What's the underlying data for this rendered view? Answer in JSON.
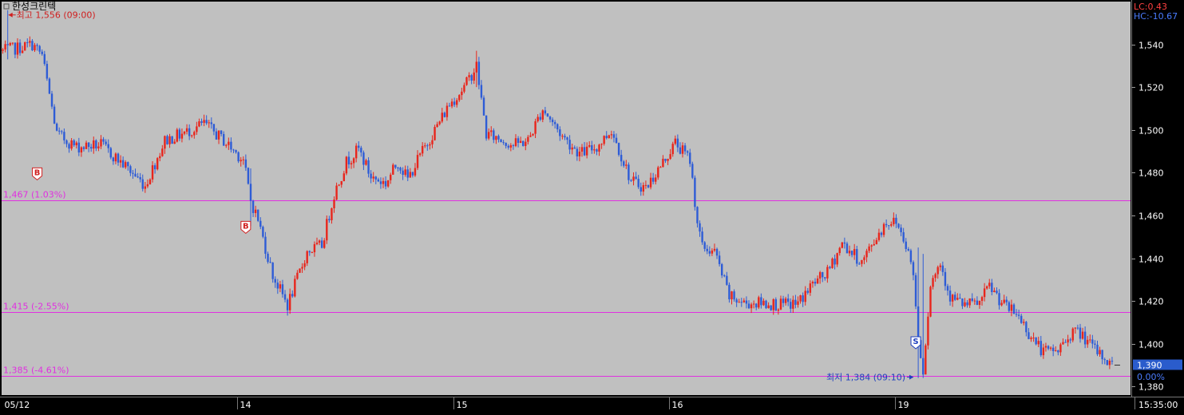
{
  "title": "한성크린텍",
  "indicators": {
    "lc": "LC:0.43",
    "hc": "HC:-10.67",
    "change": "0.00%"
  },
  "price_badge": "1,390",
  "annotations": {
    "high": "최고 1,556 (09:00)",
    "low": "최저 1,384 (09:10)"
  },
  "levels": [
    {
      "value": 1467,
      "label": "1,467 (1.03%)"
    },
    {
      "value": 1415,
      "label": "1,415 (-2.55%)"
    },
    {
      "value": 1385,
      "label": "1,385 (-4.61%)"
    }
  ],
  "markers": [
    {
      "letter": "B",
      "kind": "buy"
    },
    {
      "letter": "B",
      "kind": "buy"
    },
    {
      "letter": "S",
      "kind": "sell"
    }
  ],
  "x_labels": [
    "05/12",
    "14",
    "15",
    "16",
    "19",
    "15:35:00"
  ],
  "colors": {
    "background": "#c0c0c0",
    "up": "#e8251c",
    "down": "#2e5cd6",
    "level_line": "#e030e0",
    "axis_text": "#ffffff",
    "lc_color": "#ff4040",
    "hc_color": "#4a7cff",
    "badge": "#2a5ccc"
  },
  "chart_data": {
    "type": "candlestick",
    "ylim": [
      1376,
      1560
    ],
    "y_ticks": [
      1380,
      1400,
      1420,
      1440,
      1460,
      1480,
      1500,
      1520,
      1540
    ],
    "y_tick_labels": [
      "1,380",
      "1,400",
      "1,420",
      "1,440",
      "1,460",
      "1,480",
      "1,500",
      "1,520",
      "1,540"
    ],
    "days": [
      "05/12",
      "14",
      "15",
      "16",
      "19"
    ],
    "current_price": 1390,
    "high": {
      "value": 1556,
      "time": "09:00"
    },
    "low": {
      "value": 1384,
      "time": "09:10"
    },
    "trend": [
      [
        0,
        1537
      ],
      [
        5,
        1538
      ],
      [
        12,
        1540
      ],
      [
        16,
        1535
      ],
      [
        22,
        1498
      ],
      [
        30,
        1492
      ],
      [
        40,
        1493
      ],
      [
        50,
        1483
      ],
      [
        58,
        1474
      ],
      [
        66,
        1495
      ],
      [
        75,
        1499
      ],
      [
        82,
        1503
      ],
      [
        90,
        1495
      ],
      [
        98,
        1486
      ],
      [
        101,
        1467
      ],
      [
        104,
        1458
      ],
      [
        110,
        1432
      ],
      [
        116,
        1418
      ],
      [
        124,
        1443
      ],
      [
        130,
        1446
      ],
      [
        135,
        1470
      ],
      [
        140,
        1485
      ],
      [
        145,
        1491
      ],
      [
        150,
        1478
      ],
      [
        156,
        1475
      ],
      [
        161,
        1485
      ],
      [
        165,
        1477
      ],
      [
        170,
        1488
      ],
      [
        176,
        1500
      ],
      [
        182,
        1512
      ],
      [
        188,
        1520
      ],
      [
        193,
        1530
      ],
      [
        197,
        1498
      ],
      [
        202,
        1496
      ],
      [
        208,
        1493
      ],
      [
        214,
        1495
      ],
      [
        220,
        1510
      ],
      [
        228,
        1497
      ],
      [
        235,
        1489
      ],
      [
        242,
        1492
      ],
      [
        248,
        1500
      ],
      [
        256,
        1476
      ],
      [
        262,
        1473
      ],
      [
        268,
        1483
      ],
      [
        274,
        1494
      ],
      [
        280,
        1486
      ],
      [
        283,
        1457
      ],
      [
        285,
        1445
      ],
      [
        290,
        1443
      ],
      [
        296,
        1422
      ],
      [
        302,
        1419
      ],
      [
        310,
        1419
      ],
      [
        318,
        1418
      ],
      [
        324,
        1419
      ],
      [
        330,
        1428
      ],
      [
        336,
        1433
      ],
      [
        342,
        1447
      ],
      [
        350,
        1438
      ],
      [
        356,
        1450
      ],
      [
        360,
        1457
      ],
      [
        364,
        1457
      ],
      [
        368,
        1447
      ],
      [
        371,
        1433
      ],
      [
        373,
        1402
      ],
      [
        375,
        1388
      ],
      [
        378,
        1428
      ],
      [
        382,
        1438
      ],
      [
        386,
        1422
      ],
      [
        392,
        1418
      ],
      [
        398,
        1419
      ],
      [
        402,
        1427
      ],
      [
        408,
        1418
      ],
      [
        414,
        1413
      ],
      [
        418,
        1405
      ],
      [
        424,
        1396
      ],
      [
        430,
        1397
      ],
      [
        436,
        1406
      ],
      [
        440,
        1404
      ],
      [
        444,
        1398
      ],
      [
        448,
        1394
      ],
      [
        452,
        1390
      ]
    ]
  }
}
